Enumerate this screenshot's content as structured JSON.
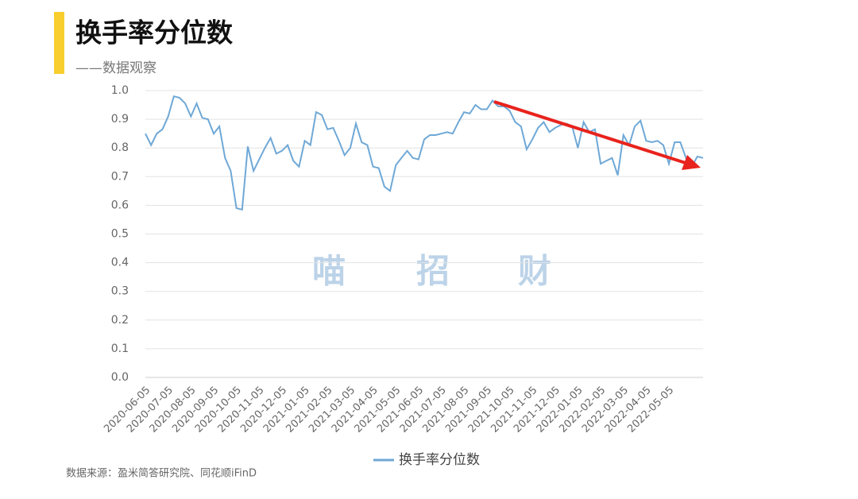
{
  "chart_data": {
    "type": "line",
    "title": "换手率分位数",
    "subtitle": "——数据观察",
    "source": "数据来源：盈米简答研究院、同花顺iFinD",
    "watermark": [
      "喵",
      "招",
      "财"
    ],
    "categories": [
      "2020-06-05",
      null,
      null,
      null,
      "2020-07-05",
      null,
      null,
      null,
      "2020-08-05",
      null,
      null,
      null,
      "2020-09-05",
      null,
      null,
      null,
      "2020-10-05",
      null,
      null,
      null,
      "2020-11-05",
      null,
      null,
      null,
      "2020-12-05",
      null,
      null,
      null,
      "2021-01-05",
      null,
      null,
      null,
      "2021-02-05",
      null,
      null,
      null,
      "2021-03-05",
      null,
      null,
      null,
      "2021-04-05",
      null,
      null,
      null,
      "2021-05-05",
      null,
      null,
      null,
      "2021-06-05",
      null,
      null,
      null,
      "2021-07-05",
      null,
      null,
      null,
      "2021-08-05",
      null,
      null,
      null,
      "2021-09-05",
      null,
      null,
      null,
      "2021-10-05",
      null,
      null,
      null,
      "2021-11-05",
      null,
      null,
      null,
      "2021-12-05",
      null,
      null,
      null,
      "2022-01-05",
      null,
      null,
      null,
      "2022-02-05",
      null,
      null,
      null,
      "2022-03-05",
      null,
      null,
      null,
      "2022-04-05",
      null,
      null,
      null,
      "2022-05-05",
      null,
      null,
      null,
      null,
      null,
      null
    ],
    "series": [
      {
        "name": "换手率分位数",
        "color": "#6fa8d6",
        "values": [
          0.85,
          0.81,
          0.85,
          0.865,
          0.91,
          0.98,
          0.975,
          0.955,
          0.91,
          0.955,
          0.905,
          0.9,
          0.85,
          0.875,
          0.765,
          0.72,
          0.59,
          0.585,
          0.805,
          0.72,
          0.76,
          0.8,
          0.835,
          0.78,
          0.79,
          0.81,
          0.755,
          0.735,
          0.825,
          0.81,
          0.925,
          0.915,
          0.865,
          0.87,
          0.825,
          0.775,
          0.8,
          0.885,
          0.82,
          0.81,
          0.735,
          0.73,
          0.665,
          0.65,
          0.74,
          0.765,
          0.79,
          0.765,
          0.76,
          0.83,
          0.845,
          0.845,
          0.85,
          0.855,
          0.85,
          0.89,
          0.925,
          0.92,
          0.95,
          0.935,
          0.935,
          0.965,
          0.945,
          0.945,
          0.93,
          0.89,
          0.875,
          0.795,
          0.83,
          0.87,
          0.89,
          0.855,
          0.87,
          0.88,
          0.885,
          0.875,
          0.8,
          0.89,
          0.855,
          0.865,
          0.745,
          0.755,
          0.765,
          0.705,
          0.845,
          0.81,
          0.875,
          0.895,
          0.825,
          0.82,
          0.825,
          0.81,
          0.745,
          0.82,
          0.82,
          0.765,
          0.735,
          0.77,
          0.765
        ]
      }
    ],
    "ylim": [
      0,
      1
    ],
    "yticks": [
      {
        "value": 0,
        "label": "0.0"
      },
      0.1,
      0.2,
      0.3,
      0.4,
      0.5,
      0.6,
      0.7,
      0.8,
      0.9,
      {
        "value": 1,
        "label": "1.0"
      }
    ],
    "grid": true,
    "legend": "bottom"
  }
}
